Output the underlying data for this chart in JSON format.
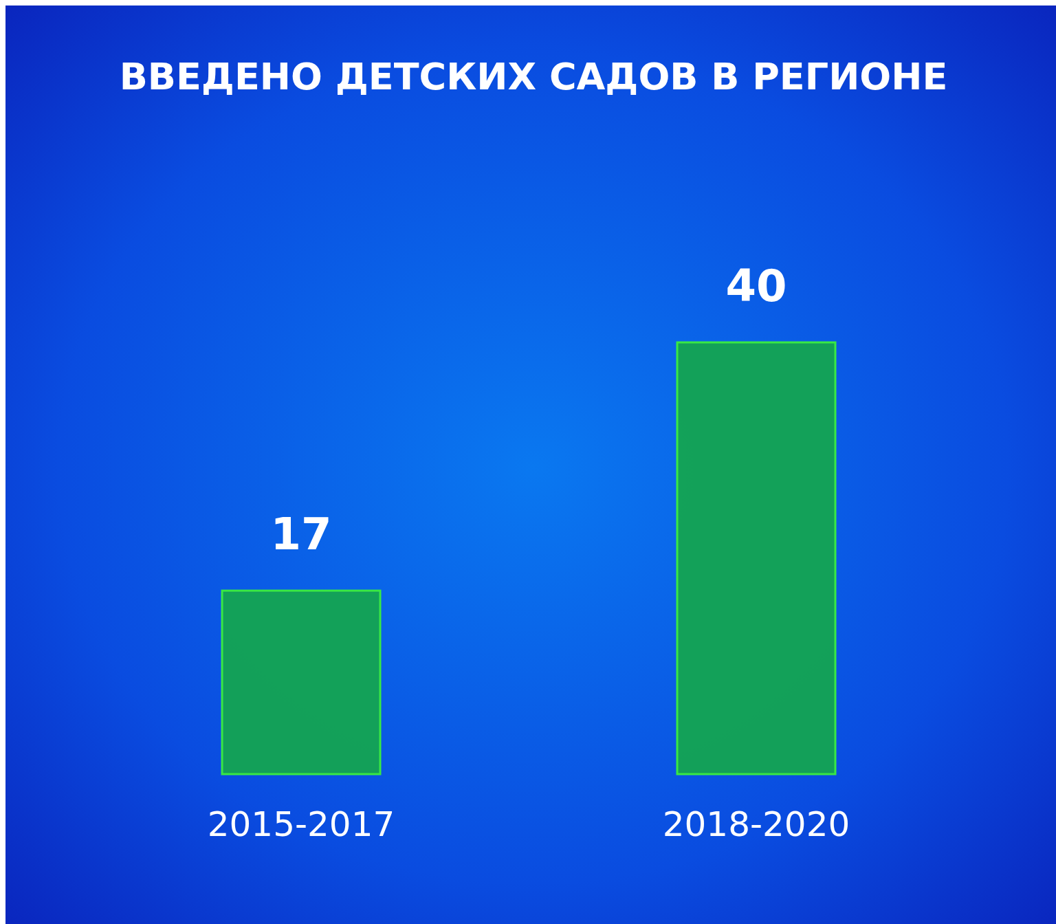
{
  "chart_data": {
    "type": "bar",
    "title": "ВВЕДЕНО ДЕТСКИХ САДОВ В РЕГИОНЕ",
    "categories": [
      "2015-2017",
      "2018-2020"
    ],
    "values": [
      17,
      40
    ],
    "color": "#14a552",
    "data_labels": true
  }
}
